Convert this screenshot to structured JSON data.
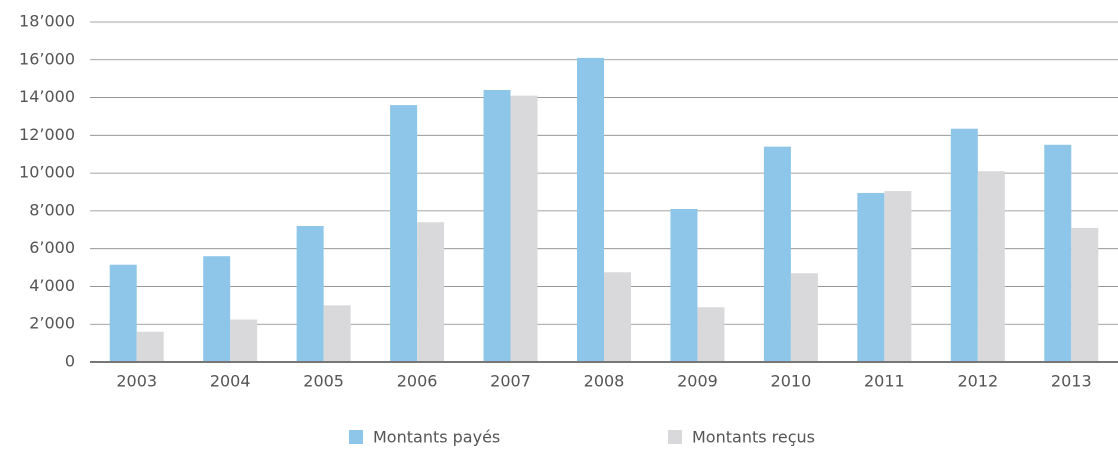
{
  "chart_data": {
    "type": "bar",
    "categories": [
      "2003",
      "2004",
      "2005",
      "2006",
      "2007",
      "2008",
      "2009",
      "2010",
      "2011",
      "2012",
      "2013"
    ],
    "series": [
      {
        "name": "Montants payés",
        "color": "#8dc6e8",
        "values": [
          5150,
          5600,
          7200,
          13600,
          14400,
          16100,
          8100,
          11400,
          8950,
          12350,
          11500
        ]
      },
      {
        "name": "Montants reçus",
        "color": "#d9d9db",
        "values": [
          1600,
          2250,
          3000,
          7400,
          14100,
          4750,
          2900,
          4700,
          9050,
          10100,
          7100
        ]
      }
    ],
    "ylim": [
      0,
      18000
    ],
    "yticks": [
      0,
      {
        "value": 2000,
        "label": "2’000"
      },
      {
        "value": 4000,
        "label": "4’000"
      },
      {
        "value": 6000,
        "label": "6’000"
      },
      {
        "value": 8000,
        "label": "8’000"
      },
      {
        "value": 10000,
        "label": "10’000"
      },
      {
        "value": 12000,
        "label": "12’000"
      },
      {
        "value": 14000,
        "label": "14’000"
      },
      {
        "value": 16000,
        "label": "16’000"
      },
      {
        "value": 18000,
        "label": "18’000"
      }
    ],
    "grid": true,
    "legend": "bottom"
  }
}
